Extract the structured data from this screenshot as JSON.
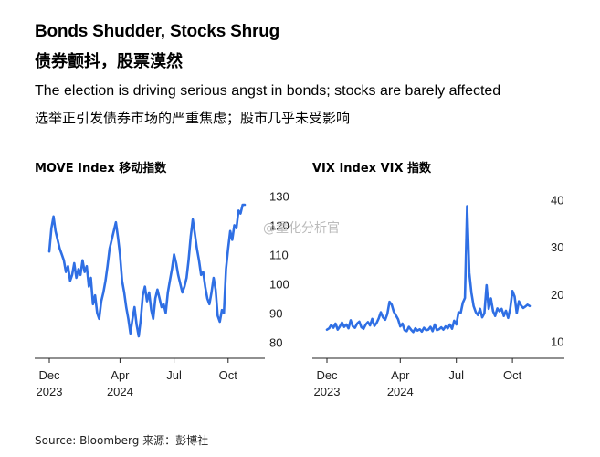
{
  "header": {
    "title": "Bonds Shudder, Stocks Shrug",
    "title_cn": "债券颤抖，股票漠然",
    "subtitle": "The election is driving serious angst in bonds; stocks are barely affected",
    "subtitle_cn": "选举正引发债券市场的严重焦虑；股市几乎未受影响"
  },
  "source": "Source: Bloomberg 来源：彭博社",
  "watermark": "@量化分析官",
  "colors": {
    "line": "#2f6fe4",
    "axis": "#222222"
  },
  "chart_data": [
    {
      "type": "line",
      "title": "MOVE Index 移动指数",
      "x_tick_labels": [
        {
          "month": "Dec",
          "year": "2023"
        },
        {
          "month": "Apr",
          "year": "2024"
        },
        {
          "month": "Jul",
          "year": ""
        },
        {
          "month": "Oct",
          "year": ""
        }
      ],
      "x_tick_positions_week": [
        0,
        17,
        30,
        43
      ],
      "ylim": [
        77,
        132
      ],
      "yticks": [
        80,
        90,
        100,
        110,
        120,
        130
      ],
      "y_axis_position": "right",
      "series": [
        {
          "name": "MOVE Index",
          "x_unit": "weeks since 2023-12-01",
          "x": [
            0,
            0.5,
            1,
            1.5,
            2,
            2.5,
            3,
            3.5,
            4,
            4.5,
            5,
            5.5,
            6,
            6.5,
            7,
            7.5,
            8,
            8.5,
            9,
            9.5,
            10,
            10.5,
            11,
            11.5,
            12,
            12.5,
            13,
            13.5,
            14,
            14.5,
            15,
            15.5,
            16,
            16.5,
            17,
            17.5,
            18,
            18.5,
            19,
            19.5,
            20,
            20.5,
            21,
            21.5,
            22,
            22.5,
            23,
            23.5,
            24,
            24.5,
            25,
            25.5,
            26,
            26.5,
            27,
            27.5,
            28,
            28.5,
            29,
            29.5,
            30,
            30.5,
            31,
            31.5,
            32,
            32.5,
            33,
            33.5,
            34,
            34.5,
            35,
            35.5,
            36,
            36.5,
            37,
            37.5,
            38,
            38.5,
            39,
            39.5,
            40,
            40.5,
            41,
            41.5,
            42,
            42.5,
            43,
            43.5,
            44,
            44.5,
            45,
            45.5,
            46,
            46.5,
            47
          ],
          "values": [
            111,
            119,
            123,
            118,
            115,
            112,
            110,
            108,
            104,
            106,
            101,
            103,
            107,
            102,
            105,
            103,
            108,
            104,
            106,
            99,
            102,
            93,
            96,
            90,
            88,
            94,
            97,
            101,
            106,
            112,
            115,
            118,
            121,
            116,
            110,
            101,
            97,
            92,
            88,
            83,
            88,
            92,
            86,
            82,
            88,
            96,
            99,
            94,
            97,
            91,
            88,
            95,
            98,
            95,
            92,
            93,
            90,
            97,
            101,
            105,
            110,
            107,
            103,
            100,
            97,
            99,
            102,
            108,
            116,
            122,
            117,
            112,
            108,
            103,
            104,
            99,
            95,
            93,
            97,
            102,
            98,
            89,
            87,
            91,
            90,
            105,
            112,
            118,
            115,
            120,
            119,
            125,
            124,
            127,
            127
          ]
        }
      ]
    },
    {
      "type": "line",
      "title": "VIX Index VIX 指数",
      "x_tick_labels": [
        {
          "month": "Dec",
          "year": "2023"
        },
        {
          "month": "Apr",
          "year": "2024"
        },
        {
          "month": "Jul",
          "year": ""
        },
        {
          "month": "Oct",
          "year": ""
        }
      ],
      "x_tick_positions_week": [
        0,
        17,
        30,
        43
      ],
      "ylim": [
        8,
        42
      ],
      "yticks": [
        10,
        20,
        30,
        40
      ],
      "y_axis_position": "right",
      "series": [
        {
          "name": "VIX Index",
          "x_unit": "weeks since 2023-12-01",
          "x": [
            0,
            0.5,
            1,
            1.5,
            2,
            2.5,
            3,
            3.5,
            4,
            4.5,
            5,
            5.5,
            6,
            6.5,
            7,
            7.5,
            8,
            8.5,
            9,
            9.5,
            10,
            10.5,
            11,
            11.5,
            12,
            12.5,
            13,
            13.5,
            14,
            14.5,
            15,
            15.5,
            16,
            16.5,
            17,
            17.5,
            18,
            18.5,
            19,
            19.5,
            20,
            20.5,
            21,
            21.5,
            22,
            22.5,
            23,
            23.5,
            24,
            24.5,
            25,
            25.5,
            26,
            26.5,
            27,
            27.5,
            28,
            28.5,
            29,
            29.5,
            30,
            30.5,
            31,
            31.5,
            32,
            32.5,
            33,
            33.5,
            34,
            34.5,
            35,
            35.5,
            36,
            36.5,
            37,
            37.5,
            38,
            38.5,
            39,
            39.5,
            40,
            40.5,
            41,
            41.5,
            42,
            42.5,
            43,
            43.5,
            44,
            44.5,
            45,
            45.5,
            46,
            46.5,
            47
          ],
          "values": [
            12.5,
            12.8,
            13.5,
            12.9,
            13.8,
            12.5,
            13.2,
            14.0,
            13.1,
            13.6,
            12.8,
            14.5,
            13.2,
            12.9,
            13.8,
            14.2,
            13.0,
            12.7,
            13.6,
            14.1,
            13.4,
            14.8,
            13.3,
            13.9,
            14.9,
            16.2,
            15.1,
            14.6,
            15.8,
            18.4,
            17.8,
            16.3,
            15.5,
            14.7,
            13.2,
            13.8,
            12.4,
            12.2,
            13.1,
            12.5,
            12.0,
            12.8,
            12.3,
            12.6,
            12.1,
            12.9,
            12.4,
            12.5,
            13.1,
            12.2,
            13.6,
            12.4,
            12.6,
            13.0,
            12.5,
            13.2,
            12.8,
            13.6,
            12.7,
            14.4,
            13.6,
            16.2,
            16.0,
            18.2,
            19.2,
            38.6,
            24.5,
            20.3,
            17.5,
            16.2,
            15.6,
            16.9,
            15.1,
            16.0,
            21.9,
            16.9,
            19.1,
            16.4,
            15.4,
            17.0,
            16.4,
            16.9,
            15.4,
            16.5,
            15.0,
            17.0,
            20.7,
            19.5,
            16.0,
            18.5,
            17.6,
            17.1,
            17.4,
            17.8,
            17.5
          ]
        }
      ]
    }
  ]
}
